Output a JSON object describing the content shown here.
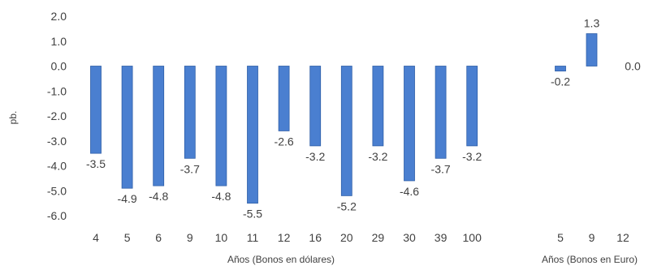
{
  "chart_data": {
    "type": "bar",
    "ylabel": "pb.",
    "ylim": [
      -6.0,
      2.0
    ],
    "ytick_step": 1.0,
    "grid": false,
    "bar_color": "#4a7fd0",
    "bar_edge_color": "#2f5fa8",
    "yticks": [
      "2.0",
      "1.0",
      "0.0",
      "-1.0",
      "-2.0",
      "-3.0",
      "-4.0",
      "-5.0",
      "-6.0"
    ],
    "groups": [
      {
        "xlabel": "Años (Bonos en dólares)",
        "categories": [
          "4",
          "5",
          "6",
          "9",
          "10",
          "11",
          "12",
          "16",
          "20",
          "29",
          "30",
          "39",
          "100"
        ],
        "values": [
          -3.5,
          -4.9,
          -4.8,
          -3.7,
          -4.8,
          -5.5,
          -2.6,
          -3.2,
          -5.2,
          -3.2,
          -4.6,
          -3.7,
          -3.2
        ],
        "labels": [
          "-3.5",
          "-4.9",
          "-4.8",
          "-3.7",
          "-4.8",
          "-5.5",
          "-2.6",
          "-3.2",
          "-5.2",
          "-3.2",
          "-4.6",
          "-3.7",
          "-3.2"
        ]
      },
      {
        "xlabel": "Años (Bonos en Euro)",
        "categories": [
          "5",
          "9",
          "12"
        ],
        "values": [
          -0.2,
          1.3,
          0.0
        ],
        "labels": [
          "-0.2",
          "1.3",
          "0.0"
        ]
      }
    ]
  }
}
